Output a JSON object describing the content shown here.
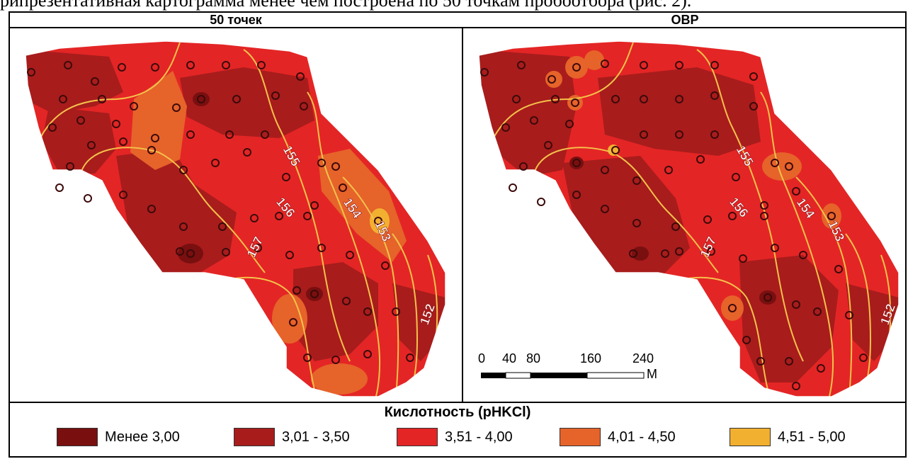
{
  "caption": "рипрезентативная картограмма менее чем построена по 50 точкам пробоотбора (рис. 2).",
  "panels": {
    "left_title": "50 точек",
    "right_title": "ОВР"
  },
  "contours": [
    "152",
    "153",
    "154",
    "155",
    "156",
    "157"
  ],
  "scale": {
    "ticks": [
      "0",
      "40",
      "80",
      "160",
      "240"
    ],
    "unit": "М"
  },
  "legend": {
    "title": "Кислотность (pHKCl)",
    "items": [
      {
        "label": "Менее 3,00",
        "color": "#7a0f0f"
      },
      {
        "label": "3,01 - 3,50",
        "color": "#a81c1c"
      },
      {
        "label": "3,51 - 4,00",
        "color": "#e42525"
      },
      {
        "label": "4,01 - 4,50",
        "color": "#e6632a"
      },
      {
        "label": "4,51 - 5,00",
        "color": "#f2b030"
      }
    ]
  },
  "colors": {
    "contour": "#f4c24a",
    "point": "#3b0a0a"
  }
}
